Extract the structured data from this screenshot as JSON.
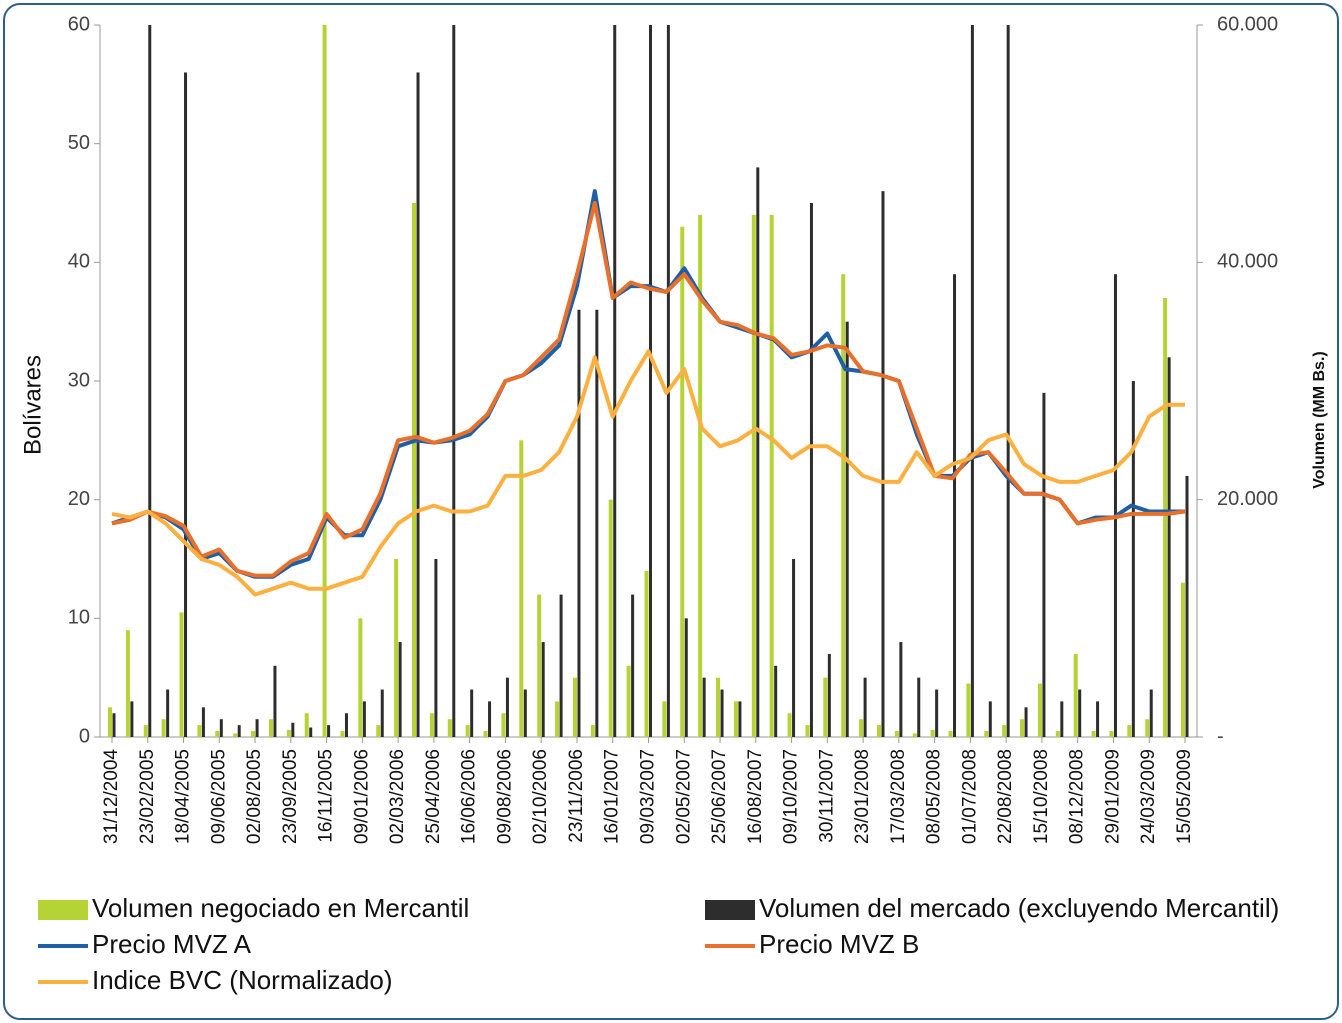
{
  "chart_data": {
    "type": "bar_line",
    "y_label": "Bolívares",
    "y2_label": "Volumen (MM Bs.)",
    "categories": [
      "31/12/2004",
      null,
      "23/02/2005",
      null,
      "18/04/2005",
      null,
      "09/06/2005",
      null,
      "02/08/2005",
      null,
      "23/09/2005",
      null,
      "16/11/2005",
      null,
      "09/01/2006",
      null,
      "02/03/2006",
      null,
      "25/04/2006",
      null,
      "16/06/2006",
      null,
      "09/08/2006",
      null,
      "02/10/2006",
      null,
      "23/11/2006",
      null,
      "16/01/2007",
      null,
      "09/03/2007",
      null,
      "02/05/2007",
      null,
      "25/06/2007",
      null,
      "16/08/2007",
      null,
      "09/10/2007",
      null,
      "30/11/2007",
      null,
      "23/01/2008",
      null,
      "17/03/2008",
      null,
      "08/05/2008",
      null,
      "01/07/2008",
      null,
      "22/08/2008",
      null,
      "15/10/2008",
      null,
      "08/12/2008",
      null,
      "29/01/2009",
      null,
      "24/03/2009",
      null,
      "15/05/2009"
    ],
    "ylim": [
      0,
      60
    ],
    "yticks": [
      0,
      10,
      20,
      30,
      40,
      50,
      60
    ],
    "y2lim": [
      0,
      60000
    ],
    "y2ticks": [
      {
        "value": 0,
        "label": "-"
      },
      {
        "value": 20000,
        "label": "20.000"
      },
      {
        "value": 40000,
        "label": "40.000"
      },
      {
        "value": 60000,
        "label": "60.000"
      }
    ],
    "series": [
      {
        "name": "Volumen negociado en Mercantil",
        "type": "bar",
        "axis": "y2",
        "color": "#b5d334",
        "values": [
          2500,
          9000,
          1000,
          1500,
          10500,
          1000,
          500,
          300,
          500,
          1500,
          600,
          2000,
          60000,
          500,
          10000,
          1000,
          15000,
          45000,
          2000,
          1500,
          1000,
          500,
          2000,
          25000,
          12000,
          3000,
          5000,
          1000,
          20000,
          6000,
          14000,
          3000,
          43000,
          44000,
          5000,
          3000,
          44000,
          44000,
          2000,
          1000,
          5000,
          39000,
          1500,
          1000,
          500,
          300,
          600,
          500,
          4500,
          500,
          1000,
          1500,
          4500,
          500,
          7000,
          500,
          500,
          1000,
          1500,
          37000,
          13000
        ]
      },
      {
        "name": "Volumen del mercado (excluyendo Mercantil)",
        "type": "bar",
        "axis": "y2",
        "color": "#2d2d2d",
        "values": [
          2000,
          3000,
          60000,
          4000,
          56000,
          2500,
          1500,
          1000,
          1500,
          6000,
          1200,
          800,
          1000,
          2000,
          3000,
          4000,
          8000,
          56000,
          15000,
          60000,
          4000,
          3000,
          5000,
          4000,
          8000,
          12000,
          36000,
          36000,
          60000,
          12000,
          60000,
          60000,
          10000,
          5000,
          4000,
          3000,
          48000,
          6000,
          15000,
          45000,
          7000,
          35000,
          5000,
          46000,
          8000,
          5000,
          4000,
          39000,
          60000,
          3000,
          60000,
          2500,
          29000,
          3000,
          4000,
          3000,
          39000,
          30000,
          4000,
          32000,
          22000
        ]
      },
      {
        "name": "Precio MVZ A",
        "type": "line",
        "color": "#1f5fa8",
        "values": [
          18,
          18.5,
          19,
          18.5,
          17.5,
          15,
          15.5,
          14,
          13.5,
          13.5,
          14.5,
          15,
          18.5,
          17,
          17,
          20,
          24.5,
          25,
          24.8,
          25,
          25.5,
          27,
          30,
          30.5,
          31.5,
          33,
          38,
          46,
          37,
          38,
          38,
          37.5,
          39.5,
          37,
          35,
          34.5,
          34,
          33.5,
          32,
          32.5,
          34,
          31,
          30.8,
          30.5,
          30,
          25.5,
          22,
          22,
          23.5,
          24,
          22,
          20.5,
          20.5,
          20,
          18,
          18.5,
          18.5,
          19.5,
          19,
          19,
          19
        ]
      },
      {
        "name": "Precio MVZ B",
        "type": "line",
        "color": "#e8702a",
        "values": [
          18,
          18.3,
          19,
          18.6,
          17.8,
          15.2,
          15.8,
          14,
          13.6,
          13.6,
          14.8,
          15.5,
          18.8,
          16.8,
          17.5,
          20.5,
          25,
          25.3,
          24.8,
          25.2,
          25.8,
          27.2,
          30,
          30.5,
          32,
          33.5,
          39,
          45,
          37,
          38.3,
          37.8,
          37.5,
          39,
          36.8,
          35,
          34.7,
          34,
          33.6,
          32.2,
          32.5,
          33,
          32.8,
          30.8,
          30.5,
          30,
          26,
          22,
          21.8,
          23.8,
          24,
          22.3,
          20.5,
          20.5,
          20,
          18,
          18.3,
          18.5,
          18.8,
          18.8,
          18.8,
          19
        ]
      },
      {
        "name": "Indice BVC (Normalizado)",
        "type": "line",
        "color": "#fbb040",
        "values": [
          18.8,
          18.5,
          19,
          18,
          16.5,
          15,
          14.5,
          13.5,
          12,
          12.5,
          13,
          12.5,
          12.5,
          13,
          13.5,
          16,
          18,
          19,
          19.5,
          19,
          19,
          19.5,
          22,
          22,
          22.5,
          24,
          27,
          32,
          27,
          30,
          32.5,
          29,
          31,
          26,
          24.5,
          25,
          26,
          25,
          23.5,
          24.5,
          24.5,
          23.5,
          22,
          21.5,
          21.5,
          24,
          22,
          23,
          23.5,
          25,
          25.5,
          23,
          22,
          21.5,
          21.5,
          22,
          22.5,
          24,
          27,
          28,
          28
        ]
      }
    ]
  }
}
